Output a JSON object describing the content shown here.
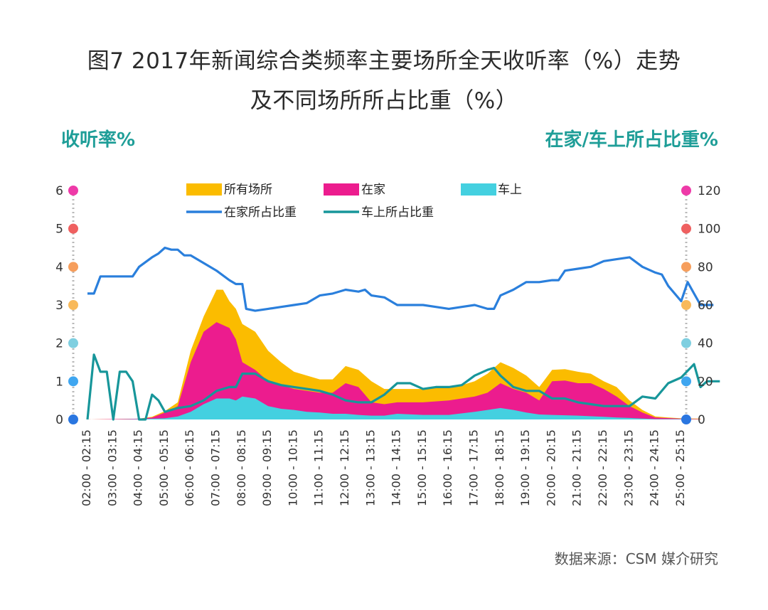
{
  "title_line1": "图7   2017年新闻综合类频率主要场所全天收听率（%）走势",
  "title_line2": "及不同场所所占比重（%）",
  "left_axis_title": "收听率%",
  "right_axis_title": "在家/车上所占比重%",
  "source": "数据来源：CSM 媒介研究",
  "colors": {
    "all": "#fbbc00",
    "home": "#ec1c8e",
    "car": "#44d0e0",
    "home_share": "#2a7fdc",
    "car_share": "#17969a"
  },
  "chart_data": {
    "type": "area",
    "x_time_slot_labels": [
      "02:00 - 02:15",
      "03:00 - 03:15",
      "04:00 - 04:15",
      "05:00 - 05:15",
      "06:00 - 06:15",
      "07:00 - 07:15",
      "08:00 - 08:15",
      "09:00 - 09:15",
      "10:00 - 10:15",
      "11:00 - 11:15",
      "12:00 - 12:15",
      "13:00 - 13:15",
      "14:00 - 14:15",
      "15:00 - 15:15",
      "16:00 - 16:15",
      "17:00 - 17:15",
      "18:00 - 18:15",
      "19:00 - 19:15",
      "20:00 - 20:15",
      "21:00 - 21:15",
      "22:00 - 22:15",
      "23:00 - 23:15",
      "24:00 - 24:15",
      "25:00 - 25:15"
    ],
    "x_range_hours": [
      2,
      25.75
    ],
    "y_left": {
      "ylim": [
        0,
        6
      ],
      "ticks": [
        0,
        1,
        2,
        3,
        4,
        5,
        6
      ]
    },
    "y_right": {
      "ylim": [
        0,
        120
      ],
      "ticks": [
        0,
        20,
        40,
        60,
        80,
        100,
        120
      ]
    },
    "axis_dot_colors": [
      "#2a76e0",
      "#3fa6f0",
      "#7fcfe0",
      "#f8b95a",
      "#f69e5c",
      "#ef6060",
      "#ee3aa8"
    ],
    "series": [
      {
        "name": "所有场所",
        "kind": "area",
        "axis": "left",
        "color": "#fbbc00",
        "points": [
          [
            2,
            0
          ],
          [
            3,
            0.01
          ],
          [
            4,
            0.02
          ],
          [
            4.5,
            0.07
          ],
          [
            5,
            0.22
          ],
          [
            5.5,
            0.45
          ],
          [
            6,
            1.8
          ],
          [
            6.5,
            2.7
          ],
          [
            7,
            3.4
          ],
          [
            7.25,
            3.4
          ],
          [
            7.5,
            3.1
          ],
          [
            7.75,
            2.9
          ],
          [
            8,
            2.5
          ],
          [
            8.5,
            2.3
          ],
          [
            9,
            1.8
          ],
          [
            9.5,
            1.5
          ],
          [
            10,
            1.25
          ],
          [
            10.5,
            1.15
          ],
          [
            11,
            1.05
          ],
          [
            11.5,
            1.05
          ],
          [
            12,
            1.4
          ],
          [
            12.5,
            1.3
          ],
          [
            13,
            1.0
          ],
          [
            13.5,
            0.8
          ],
          [
            14,
            0.8
          ],
          [
            15,
            0.8
          ],
          [
            16,
            0.85
          ],
          [
            16.5,
            0.9
          ],
          [
            17,
            1.0
          ],
          [
            17.5,
            1.2
          ],
          [
            18,
            1.5
          ],
          [
            18.5,
            1.35
          ],
          [
            19,
            1.15
          ],
          [
            19.5,
            0.85
          ],
          [
            20,
            1.3
          ],
          [
            20.5,
            1.32
          ],
          [
            21,
            1.25
          ],
          [
            21.5,
            1.2
          ],
          [
            22,
            1.0
          ],
          [
            22.5,
            0.85
          ],
          [
            23,
            0.5
          ],
          [
            23.5,
            0.25
          ],
          [
            24,
            0.08
          ],
          [
            24.5,
            0.05
          ],
          [
            25,
            0.03
          ],
          [
            25.75,
            0.02
          ]
        ]
      },
      {
        "name": "在家",
        "kind": "area",
        "axis": "left",
        "color": "#ec1c8e",
        "points": [
          [
            2,
            0
          ],
          [
            3,
            0.01
          ],
          [
            4,
            0.02
          ],
          [
            4.5,
            0.05
          ],
          [
            5,
            0.18
          ],
          [
            5.5,
            0.35
          ],
          [
            6,
            1.5
          ],
          [
            6.5,
            2.3
          ],
          [
            7,
            2.55
          ],
          [
            7.5,
            2.4
          ],
          [
            7.75,
            2.1
          ],
          [
            8,
            1.5
          ],
          [
            8.5,
            1.3
          ],
          [
            9,
            1.0
          ],
          [
            9.5,
            0.9
          ],
          [
            10,
            0.8
          ],
          [
            10.5,
            0.75
          ],
          [
            11,
            0.7
          ],
          [
            11.5,
            0.7
          ],
          [
            12,
            0.95
          ],
          [
            12.5,
            0.85
          ],
          [
            13,
            0.45
          ],
          [
            13.5,
            0.4
          ],
          [
            14,
            0.45
          ],
          [
            15,
            0.45
          ],
          [
            16,
            0.5
          ],
          [
            17,
            0.6
          ],
          [
            17.5,
            0.7
          ],
          [
            18,
            0.95
          ],
          [
            18.5,
            0.8
          ],
          [
            19,
            0.7
          ],
          [
            19.5,
            0.5
          ],
          [
            20,
            1.0
          ],
          [
            20.5,
            1.02
          ],
          [
            21,
            0.95
          ],
          [
            21.5,
            0.95
          ],
          [
            22,
            0.8
          ],
          [
            22.5,
            0.6
          ],
          [
            23,
            0.35
          ],
          [
            23.5,
            0.18
          ],
          [
            24,
            0.05
          ],
          [
            25,
            0.02
          ],
          [
            25.75,
            0.01
          ]
        ]
      },
      {
        "name": "车上",
        "kind": "area",
        "axis": "left",
        "color": "#44d0e0",
        "points": [
          [
            2,
            0
          ],
          [
            3,
            0
          ],
          [
            4,
            0.01
          ],
          [
            5,
            0.03
          ],
          [
            5.5,
            0.08
          ],
          [
            6,
            0.2
          ],
          [
            6.5,
            0.4
          ],
          [
            7,
            0.55
          ],
          [
            7.5,
            0.55
          ],
          [
            7.75,
            0.5
          ],
          [
            8,
            0.6
          ],
          [
            8.5,
            0.55
          ],
          [
            9,
            0.35
          ],
          [
            9.5,
            0.28
          ],
          [
            10,
            0.25
          ],
          [
            10.5,
            0.2
          ],
          [
            11,
            0.18
          ],
          [
            11.5,
            0.15
          ],
          [
            12,
            0.15
          ],
          [
            12.5,
            0.12
          ],
          [
            13,
            0.1
          ],
          [
            13.5,
            0.1
          ],
          [
            14,
            0.15
          ],
          [
            15,
            0.12
          ],
          [
            16,
            0.12
          ],
          [
            17,
            0.2
          ],
          [
            17.5,
            0.25
          ],
          [
            18,
            0.3
          ],
          [
            18.5,
            0.25
          ],
          [
            19,
            0.18
          ],
          [
            19.5,
            0.13
          ],
          [
            20,
            0.12
          ],
          [
            21,
            0.1
          ],
          [
            22,
            0.07
          ],
          [
            22.5,
            0.05
          ],
          [
            23,
            0.04
          ],
          [
            24,
            0.01
          ],
          [
            25,
            0.01
          ],
          [
            25.75,
            0
          ]
        ]
      },
      {
        "name": "在家所占比重",
        "kind": "line",
        "axis": "right",
        "color": "#2a7fdc",
        "points": [
          [
            2,
            66
          ],
          [
            2.25,
            66
          ],
          [
            2.5,
            75
          ],
          [
            3,
            75
          ],
          [
            3.5,
            75
          ],
          [
            3.75,
            75
          ],
          [
            4,
            80
          ],
          [
            4.5,
            85
          ],
          [
            4.75,
            87
          ],
          [
            5,
            90
          ],
          [
            5.25,
            89
          ],
          [
            5.5,
            89
          ],
          [
            5.75,
            86
          ],
          [
            6,
            86
          ],
          [
            6.5,
            82
          ],
          [
            7,
            78
          ],
          [
            7.5,
            73
          ],
          [
            7.75,
            71
          ],
          [
            8,
            71
          ],
          [
            8.15,
            58
          ],
          [
            8.5,
            57
          ],
          [
            9,
            58
          ],
          [
            9.5,
            59
          ],
          [
            10,
            60
          ],
          [
            10.5,
            61
          ],
          [
            11,
            65
          ],
          [
            11.5,
            66
          ],
          [
            12,
            68
          ],
          [
            12.5,
            67
          ],
          [
            12.75,
            68
          ],
          [
            13,
            65
          ],
          [
            13.5,
            64
          ],
          [
            14,
            60
          ],
          [
            14.5,
            60
          ],
          [
            15,
            60
          ],
          [
            15.5,
            59
          ],
          [
            16,
            58
          ],
          [
            16.5,
            59
          ],
          [
            17,
            60
          ],
          [
            17.5,
            58
          ],
          [
            17.75,
            58
          ],
          [
            18,
            65
          ],
          [
            18.5,
            68
          ],
          [
            19,
            72
          ],
          [
            19.5,
            72
          ],
          [
            20,
            73
          ],
          [
            20.25,
            73
          ],
          [
            20.5,
            78
          ],
          [
            21,
            79
          ],
          [
            21.5,
            80
          ],
          [
            22,
            83
          ],
          [
            22.5,
            84
          ],
          [
            23,
            85
          ],
          [
            23.5,
            80
          ],
          [
            24,
            77
          ],
          [
            24.25,
            76
          ],
          [
            24.5,
            70
          ],
          [
            25,
            62
          ],
          [
            25.25,
            72
          ],
          [
            25.5,
            66
          ],
          [
            25.75,
            60
          ],
          [
            26,
            60
          ],
          [
            26.25,
            60
          ]
        ]
      },
      {
        "name": "车上所占比重",
        "kind": "line",
        "axis": "right",
        "color": "#17969a",
        "points": [
          [
            2,
            0
          ],
          [
            2.25,
            34
          ],
          [
            2.5,
            25
          ],
          [
            2.75,
            25
          ],
          [
            3,
            0
          ],
          [
            3.25,
            25
          ],
          [
            3.5,
            25
          ],
          [
            3.75,
            20
          ],
          [
            4,
            0
          ],
          [
            4.25,
            0
          ],
          [
            4.5,
            13
          ],
          [
            4.75,
            10
          ],
          [
            5,
            4
          ],
          [
            5.5,
            6
          ],
          [
            6,
            7
          ],
          [
            6.5,
            10
          ],
          [
            7,
            15
          ],
          [
            7.5,
            17
          ],
          [
            7.75,
            17
          ],
          [
            8,
            24
          ],
          [
            8.5,
            24
          ],
          [
            9,
            20
          ],
          [
            9.5,
            18
          ],
          [
            10,
            17
          ],
          [
            10.5,
            16
          ],
          [
            11,
            15
          ],
          [
            11.5,
            13
          ],
          [
            12,
            10
          ],
          [
            12.5,
            9
          ],
          [
            13,
            9
          ],
          [
            13.5,
            13
          ],
          [
            14,
            19
          ],
          [
            14.5,
            19
          ],
          [
            15,
            16
          ],
          [
            15.5,
            17
          ],
          [
            16,
            17
          ],
          [
            16.5,
            18
          ],
          [
            17,
            23
          ],
          [
            17.5,
            26
          ],
          [
            17.75,
            27
          ],
          [
            18,
            23
          ],
          [
            18.5,
            17
          ],
          [
            19,
            15
          ],
          [
            19.5,
            15
          ],
          [
            20,
            11
          ],
          [
            20.5,
            11
          ],
          [
            21,
            9
          ],
          [
            21.5,
            8
          ],
          [
            22,
            7
          ],
          [
            22.5,
            7
          ],
          [
            23,
            7
          ],
          [
            23.5,
            12
          ],
          [
            24,
            11
          ],
          [
            24.5,
            19
          ],
          [
            25,
            22
          ],
          [
            25.5,
            29
          ],
          [
            25.75,
            17
          ],
          [
            26,
            20
          ],
          [
            26.25,
            20
          ],
          [
            26.5,
            20
          ]
        ]
      }
    ],
    "legend": [
      "所有场所",
      "在家",
      "车上",
      "在家所占比重",
      "车上所占比重"
    ],
    "legend_placement": "top",
    "grid": false
  }
}
